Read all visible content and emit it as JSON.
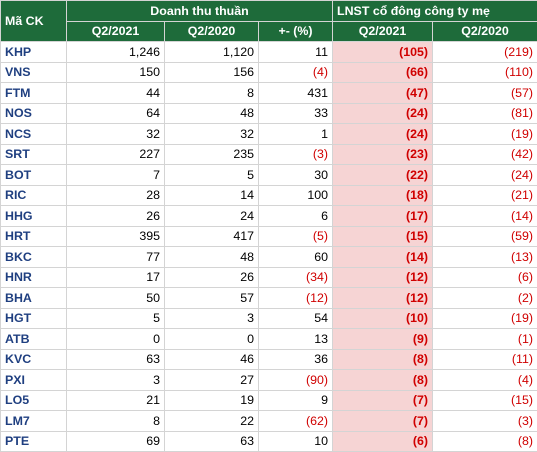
{
  "table": {
    "header": {
      "code": "Mã CK",
      "revenue_group": "Doanh thu thuần",
      "profit_group": "LNST cổ đông công ty mẹ",
      "q2_2021": "Q2/2021",
      "q2_2020": "Q2/2020",
      "change": "+- (%)",
      "p_q2_2021": "Q2/2021",
      "p_q2_2020": "Q2/2020"
    },
    "rows": [
      {
        "code": "KHP",
        "rev21": "1,246",
        "rev20": "1,120",
        "chg": "11",
        "p21": "(105)",
        "p20": "(219)"
      },
      {
        "code": "VNS",
        "rev21": "150",
        "rev20": "156",
        "chg": "(4)",
        "p21": "(66)",
        "p20": "(110)"
      },
      {
        "code": "FTM",
        "rev21": "44",
        "rev20": "8",
        "chg": "431",
        "p21": "(47)",
        "p20": "(57)"
      },
      {
        "code": "NOS",
        "rev21": "64",
        "rev20": "48",
        "chg": "33",
        "p21": "(24)",
        "p20": "(81)"
      },
      {
        "code": "NCS",
        "rev21": "32",
        "rev20": "32",
        "chg": "1",
        "p21": "(24)",
        "p20": "(19)"
      },
      {
        "code": "SRT",
        "rev21": "227",
        "rev20": "235",
        "chg": "(3)",
        "p21": "(23)",
        "p20": "(42)"
      },
      {
        "code": "BOT",
        "rev21": "7",
        "rev20": "5",
        "chg": "30",
        "p21": "(22)",
        "p20": "(24)"
      },
      {
        "code": "RIC",
        "rev21": "28",
        "rev20": "14",
        "chg": "100",
        "p21": "(18)",
        "p20": "(21)"
      },
      {
        "code": "HHG",
        "rev21": "26",
        "rev20": "24",
        "chg": "6",
        "p21": "(17)",
        "p20": "(14)"
      },
      {
        "code": "HRT",
        "rev21": "395",
        "rev20": "417",
        "chg": "(5)",
        "p21": "(15)",
        "p20": "(59)"
      },
      {
        "code": "BKC",
        "rev21": "77",
        "rev20": "48",
        "chg": "60",
        "p21": "(14)",
        "p20": "(13)"
      },
      {
        "code": "HNR",
        "rev21": "17",
        "rev20": "26",
        "chg": "(34)",
        "p21": "(12)",
        "p20": "(6)"
      },
      {
        "code": "BHA",
        "rev21": "50",
        "rev20": "57",
        "chg": "(12)",
        "p21": "(12)",
        "p20": "(2)"
      },
      {
        "code": "HGT",
        "rev21": "5",
        "rev20": "3",
        "chg": "54",
        "p21": "(10)",
        "p20": "(19)"
      },
      {
        "code": "ATB",
        "rev21": "0",
        "rev20": "0",
        "chg": "13",
        "p21": "(9)",
        "p20": "(1)"
      },
      {
        "code": "KVC",
        "rev21": "63",
        "rev20": "46",
        "chg": "36",
        "p21": "(8)",
        "p20": "(11)"
      },
      {
        "code": "PXI",
        "rev21": "3",
        "rev20": "27",
        "chg": "(90)",
        "p21": "(8)",
        "p20": "(4)"
      },
      {
        "code": "LO5",
        "rev21": "21",
        "rev20": "19",
        "chg": "9",
        "p21": "(7)",
        "p20": "(15)"
      },
      {
        "code": "LM7",
        "rev21": "8",
        "rev20": "22",
        "chg": "(62)",
        "p21": "(7)",
        "p20": "(3)"
      },
      {
        "code": "PTE",
        "rev21": "69",
        "rev20": "63",
        "chg": "10",
        "p21": "(6)",
        "p20": "(8)"
      }
    ]
  },
  "colors": {
    "header_bg": "#1e6b3a",
    "header_text": "#ffffff",
    "code_text": "#1f3f80",
    "negative_text": "#d00000",
    "highlight_bg": "#f6d4d4"
  }
}
